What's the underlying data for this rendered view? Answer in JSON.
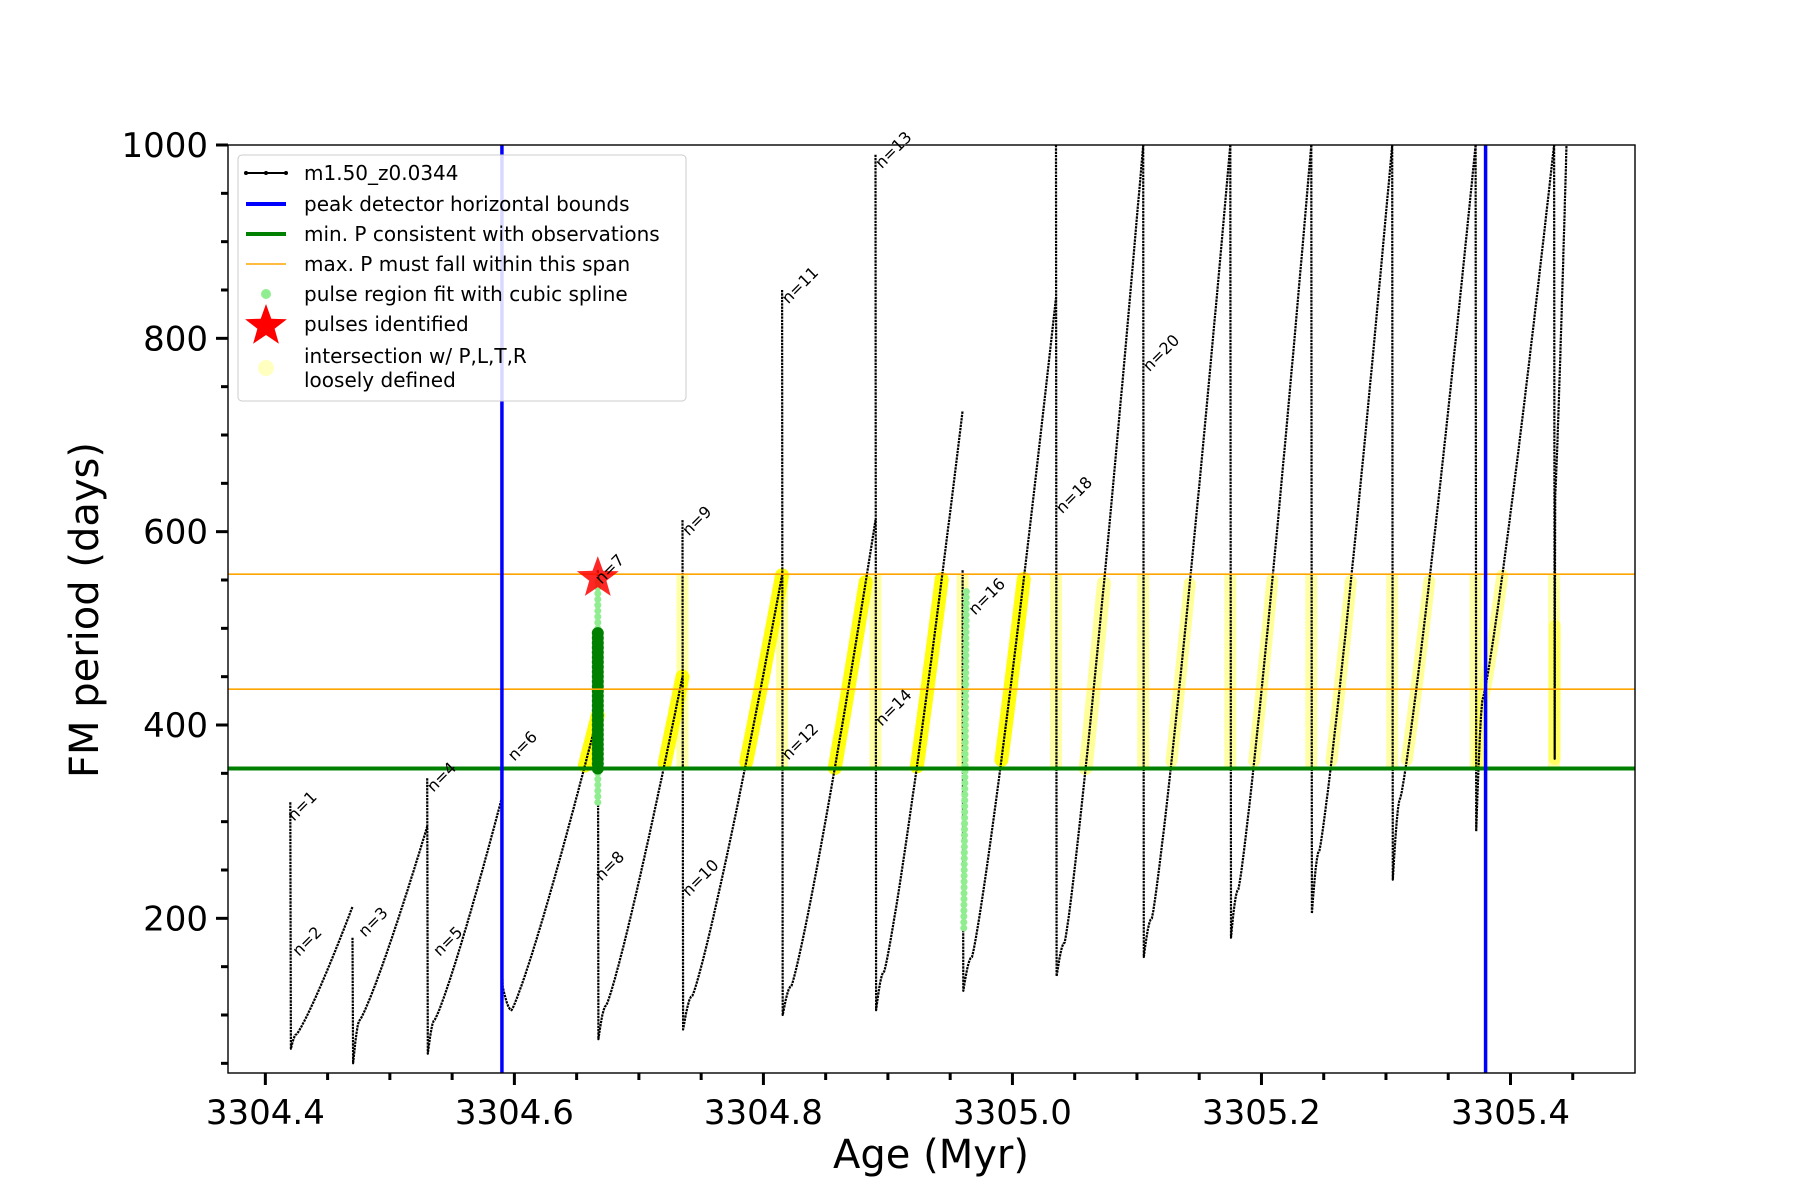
{
  "chart_data": {
    "type": "line",
    "xlabel": "Age (Myr)",
    "ylabel": "FM period (days)",
    "xlim": [
      3304.37,
      3305.5
    ],
    "ylim": [
      40,
      1000
    ],
    "xticks_major": [
      3304.4,
      3304.6,
      3304.8,
      3305.0,
      3305.2,
      3305.4
    ],
    "xticks_major_labels": [
      "3304.4",
      "3304.6",
      "3304.8",
      "3305.0",
      "3305.2",
      "3305.4"
    ],
    "yticks_major": [
      200,
      400,
      600,
      800,
      1000
    ],
    "yticks_major_labels": [
      "200",
      "400",
      "600",
      "800",
      "1000"
    ],
    "legend": {
      "position": "upper-left",
      "entries": [
        {
          "label": "m1.50_z0.0344",
          "kind": "line-dots",
          "color": "#000000"
        },
        {
          "label": "peak detector horizontal bounds",
          "kind": "line",
          "color": "#0000ff"
        },
        {
          "label": "min. P consistent with observations",
          "kind": "line",
          "color": "#008000"
        },
        {
          "label": "max. P must fall within this span",
          "kind": "line",
          "color": "#ffa500"
        },
        {
          "label": "pulse region fit with cubic spline",
          "kind": "dot",
          "color": "#90ee90"
        },
        {
          "label": "pulses identified",
          "kind": "star",
          "color": "#ff0000"
        },
        {
          "label": "intersection w/ P,L,T,R",
          "label2": "loosely defined",
          "kind": "circle",
          "color": "#ffffc0"
        }
      ]
    },
    "reference_lines": {
      "vertical_blue": [
        3304.59,
        3305.38
      ],
      "horizontal_green": 355,
      "horizontal_orange": [
        437,
        556
      ]
    },
    "series": [
      {
        "name": "m1.50_z0.0344",
        "color": "#000000",
        "pulses": [
          {
            "t0": 3304.42,
            "t1": 3304.47,
            "spike": 320,
            "start": 65,
            "min": 80,
            "end": 212
          },
          {
            "t0": 3304.47,
            "t1": 3304.53,
            "spike": 180,
            "start": 50,
            "min": 95,
            "end": 295
          },
          {
            "t0": 3304.53,
            "t1": 3304.59,
            "spike": 345,
            "start": 60,
            "min": 95,
            "end": 325
          },
          {
            "t0": 3304.59,
            "t1": 3304.667,
            "spike": 165,
            "start": 130,
            "min": 105,
            "end": 410
          },
          {
            "t0": 3304.667,
            "t1": 3304.735,
            "spike": 560,
            "start": 75,
            "min": 110,
            "end": 450
          },
          {
            "t0": 3304.735,
            "t1": 3304.815,
            "spike": 612,
            "start": 85,
            "min": 120,
            "end": 555
          },
          {
            "t0": 3304.815,
            "t1": 3304.89,
            "spike": 850,
            "start": 100,
            "min": 130,
            "end": 612
          },
          {
            "t0": 3304.89,
            "t1": 3304.96,
            "spike": 990,
            "start": 105,
            "min": 145,
            "end": 725
          },
          {
            "t0": 3304.96,
            "t1": 3305.035,
            "spike": 560,
            "start": 125,
            "min": 160,
            "end": 842
          },
          {
            "t0": 3305.035,
            "t1": 3305.105,
            "spike": 1000,
            "start": 140,
            "min": 175,
            "end": 1000
          },
          {
            "t0": 3305.105,
            "t1": 3305.175,
            "spike": 1000,
            "start": 160,
            "min": 200,
            "end": 1000
          },
          {
            "t0": 3305.175,
            "t1": 3305.24,
            "spike": 1000,
            "start": 180,
            "min": 230,
            "end": 1000
          },
          {
            "t0": 3305.24,
            "t1": 3305.305,
            "spike": 1000,
            "start": 205,
            "min": 270,
            "end": 1000
          },
          {
            "t0": 3305.305,
            "t1": 3305.372,
            "spike": 1000,
            "start": 240,
            "min": 325,
            "end": 1000
          },
          {
            "t0": 3305.372,
            "t1": 3305.435,
            "spike": 1000,
            "start": 290,
            "min": 430,
            "end": 1000
          },
          {
            "t0": 3305.435,
            "t1": 3305.445,
            "spike": 1000,
            "start": 365,
            "min": 640,
            "end": 1000
          }
        ]
      },
      {
        "name": "intersection w/ P,L,T,R loosely defined",
        "color": "#ffff00",
        "range": [
          355,
          556
        ]
      },
      {
        "name": "min. P consistent with observations (pulse fit)",
        "color": "#008000",
        "points": [
          {
            "x": 3304.667,
            "y_from": 355,
            "y_to": 495
          }
        ]
      },
      {
        "name": "pulse region fit with cubic spline",
        "color": "#90ee90",
        "points": [
          {
            "x": 3304.667,
            "y_from": 320,
            "y_to": 548
          },
          {
            "x": 3304.963,
            "y_from": 190,
            "y_to": 540
          }
        ]
      }
    ],
    "pulses_identified": [
      {
        "x": 3304.667,
        "y": 552
      }
    ],
    "annotations": [
      {
        "text": "n=1",
        "x": 3304.423,
        "y": 300
      },
      {
        "text": "n=2",
        "x": 3304.427,
        "y": 160
      },
      {
        "text": "n=3",
        "x": 3304.48,
        "y": 180
      },
      {
        "text": "n=4",
        "x": 3304.535,
        "y": 330
      },
      {
        "text": "n=5",
        "x": 3304.54,
        "y": 160
      },
      {
        "text": "n=6",
        "x": 3304.6,
        "y": 362
      },
      {
        "text": "n=7",
        "x": 3304.67,
        "y": 545
      },
      {
        "text": "n=8",
        "x": 3304.67,
        "y": 238
      },
      {
        "text": "n=9",
        "x": 3304.74,
        "y": 595
      },
      {
        "text": "n=10",
        "x": 3304.74,
        "y": 222
      },
      {
        "text": "n=11",
        "x": 3304.82,
        "y": 835
      },
      {
        "text": "n=12",
        "x": 3304.82,
        "y": 363
      },
      {
        "text": "n=13",
        "x": 3304.895,
        "y": 975
      },
      {
        "text": "n=14",
        "x": 3304.895,
        "y": 398
      },
      {
        "text": "n=16",
        "x": 3304.97,
        "y": 513
      },
      {
        "text": "n=18",
        "x": 3305.04,
        "y": 618
      },
      {
        "text": "n=20",
        "x": 3305.11,
        "y": 765
      }
    ]
  }
}
